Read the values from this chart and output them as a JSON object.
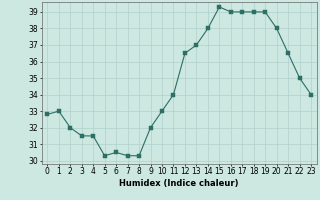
{
  "x": [
    0,
    1,
    2,
    3,
    4,
    5,
    6,
    7,
    8,
    9,
    10,
    11,
    12,
    13,
    14,
    15,
    16,
    17,
    18,
    19,
    20,
    21,
    22,
    23
  ],
  "y": [
    32.8,
    33.0,
    32.0,
    31.5,
    31.5,
    30.3,
    30.5,
    30.3,
    30.3,
    32.0,
    33.0,
    34.0,
    36.5,
    37.0,
    38.0,
    39.3,
    39.0,
    39.0,
    39.0,
    39.0,
    38.0,
    36.5,
    35.0,
    34.0
  ],
  "xlabel": "Humidex (Indice chaleur)",
  "ylim": [
    29.8,
    39.6
  ],
  "xlim": [
    -0.5,
    23.5
  ],
  "yticks": [
    30,
    31,
    32,
    33,
    34,
    35,
    36,
    37,
    38,
    39
  ],
  "xticks": [
    0,
    1,
    2,
    3,
    4,
    5,
    6,
    7,
    8,
    9,
    10,
    11,
    12,
    13,
    14,
    15,
    16,
    17,
    18,
    19,
    20,
    21,
    22,
    23
  ],
  "line_color": "#2d6e65",
  "marker_color": "#2d6e65",
  "bg_color": "#cce8e0",
  "grid_color": "#b0d0cc",
  "xlabel_fontsize": 6.0,
  "tick_fontsize": 5.5,
  "marker_size": 2.2,
  "linewidth": 0.8
}
